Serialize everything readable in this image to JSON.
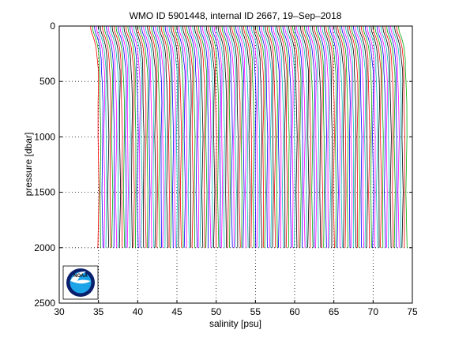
{
  "chart_data": {
    "type": "line",
    "title": "WMO ID 5901448, internal ID 2667, 19–Sep–2018",
    "xlabel": "salinity [psu]",
    "ylabel": "pressure [dbar]",
    "xlim": [
      30,
      75
    ],
    "ylim": [
      0,
      2500
    ],
    "y_reversed": true,
    "x_ticks": [
      "30",
      "35",
      "40",
      "45",
      "50",
      "55",
      "60",
      "65",
      "70",
      "75"
    ],
    "y_ticks": [
      "0",
      "500",
      "1000",
      "1500",
      "2000",
      "2500"
    ],
    "grid": "dotted",
    "legend": "none",
    "series_description": "Waterfall of successive salinity profiles; each profile is offset by about 0.25 psu from the previous one.",
    "profile_count": 158,
    "profile_offset_psu": 0.25,
    "first_profile_deep_salinity_psu": 35.0,
    "profile_max_pressure_dbar": 2000,
    "profile_shape": {
      "pressure_dbar": [
        0,
        10,
        25,
        50,
        75,
        100,
        150,
        200,
        300,
        400,
        500,
        700,
        1000,
        1500,
        2000
      ],
      "salinity_anomaly_psu": [
        -1.0,
        -1.0,
        -0.98,
        -0.92,
        -0.8,
        -0.65,
        -0.45,
        -0.3,
        -0.15,
        -0.07,
        -0.02,
        0.0,
        0.0,
        0.0,
        0.0
      ]
    },
    "line_colors": [
      "#ff0000",
      "#00aa00",
      "#0000ff",
      "#ff00ff",
      "#00bfbf",
      "#000000"
    ]
  },
  "logo": {
    "name": "noaa-logo",
    "text": "NOAA",
    "colors": {
      "outer": "#0a1f6b",
      "inner": "#1ca3e8",
      "bird": "#ffffff"
    }
  }
}
